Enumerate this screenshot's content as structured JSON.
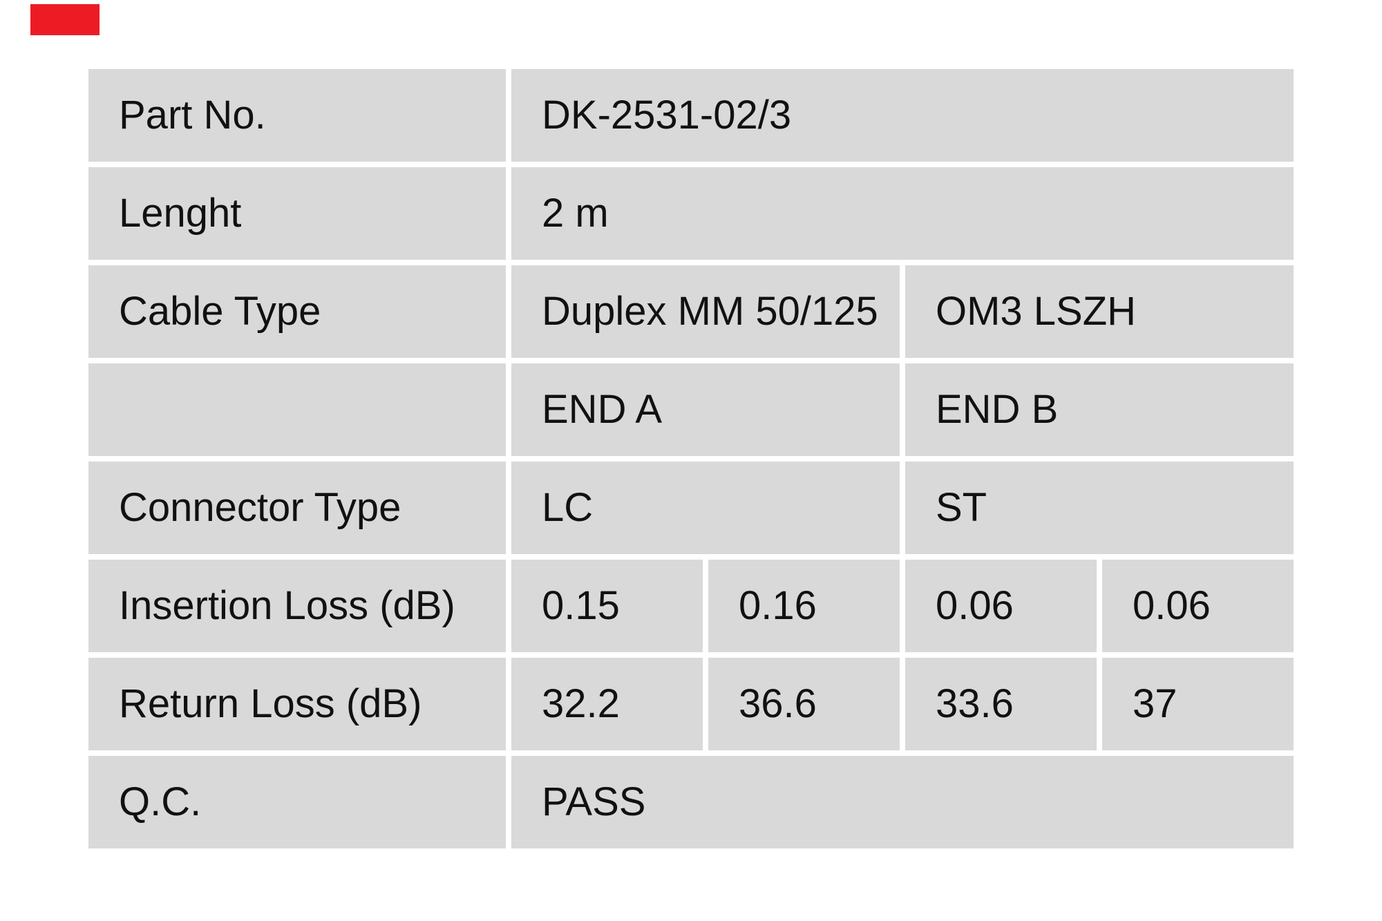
{
  "colors": {
    "accent_red": "#ed1c24",
    "cell_gray": "#d9d9d9",
    "text_color": "#111111"
  },
  "brand_mark": {
    "description": "solid red rectangle logo mark, top-left corner"
  },
  "table": {
    "rows": [
      {
        "label": "Part No.",
        "cells": [
          "DK-2531-02/3"
        ]
      },
      {
        "label": "Lenght",
        "cells": [
          "2 m"
        ]
      },
      {
        "label": "Cable Type",
        "cells": [
          "Duplex MM 50/125",
          "OM3 LSZH"
        ]
      },
      {
        "label": "",
        "cells": [
          "END A",
          "END B"
        ]
      },
      {
        "label": "Connector Type",
        "cells": [
          "LC",
          "ST"
        ]
      },
      {
        "label": "Insertion Loss (dB)",
        "cells": [
          "0.15",
          "0.16",
          "0.06",
          "0.06"
        ]
      },
      {
        "label": "Return Loss (dB)",
        "cells": [
          "32.2",
          "36.6",
          "33.6",
          "37"
        ]
      },
      {
        "label": "Q.C.",
        "cells": [
          "PASS"
        ]
      }
    ]
  }
}
